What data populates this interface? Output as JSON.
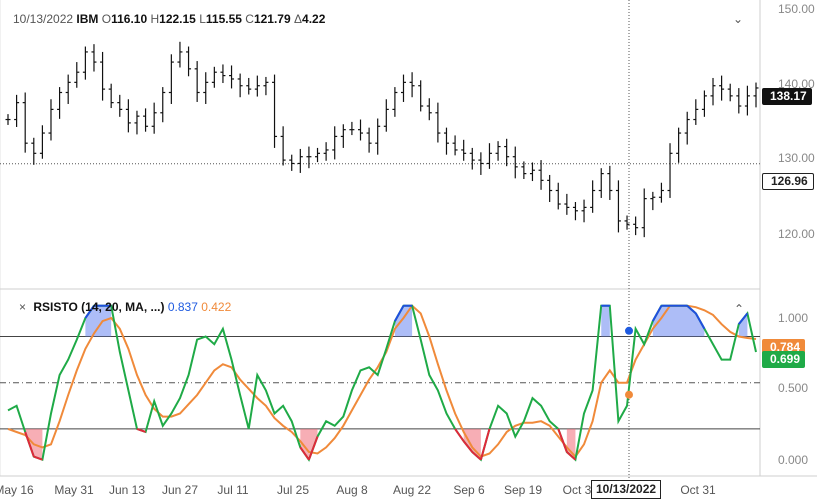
{
  "header": {
    "date": "10/13/2022",
    "symbol": "IBM",
    "o_label": "O",
    "o_value": "116.10",
    "h_label": "H",
    "h_value": "122.15",
    "l_label": "L",
    "l_value": "115.55",
    "c_label": "C",
    "c_value": "121.79",
    "d_label": "Δ",
    "d_value": "4.22"
  },
  "indicator": {
    "name": "RSISTO (14, 20, MA, ...)",
    "k_value": "0.837",
    "d_value": "0.422",
    "k_color": "#1f5be0",
    "d_color": "#f08a3a"
  },
  "badges": {
    "last_price": "138.17",
    "crosshair_price": "126.96",
    "k_last": "0.699",
    "d_last": "0.784",
    "crosshair_date": "10/13/2022"
  },
  "icons": {
    "collapse_price": "chevron-down-icon",
    "close_indicator": "close-icon",
    "collapse_indicator": "chevron-up-icon"
  },
  "glyphs": {
    "chevron_down": "⌄",
    "close": "×",
    "chevron_up": "⌃"
  },
  "colors": {
    "up_fill": "#6a86f0",
    "down_fill": "#f06b78",
    "k_line": "#1faa47",
    "d_line": "#f08a3a",
    "bars": "#111111"
  },
  "chart_data": [
    {
      "type": "ohlc",
      "ylim": [
        110.5,
        150
      ],
      "yticks": [
        120,
        130,
        140,
        150
      ],
      "ytick_labels": [
        "120.00",
        "130.00",
        "140.00",
        "150.00"
      ],
      "xtick_labels": [
        "May 16",
        "May 31",
        "Jun 13",
        "Jun 27",
        "Jul 11",
        "Jul 25",
        "Aug 8",
        "Aug 22",
        "Sep 6",
        "Sep 19",
        "Oct 3",
        "Oct 31"
      ],
      "crosshair": {
        "date": "10/13/2022",
        "price": 126.96
      },
      "last_price": 138.17,
      "closes": [
        133.5,
        136.0,
        130.0,
        128.5,
        131.5,
        135.0,
        137.5,
        139.0,
        140.5,
        143.5,
        142.0,
        138.0,
        136.0,
        135.0,
        133.0,
        134.0,
        132.5,
        134.5,
        137.5,
        142.0,
        143.5,
        141.0,
        137.5,
        139.0,
        140.5,
        140.0,
        139.5,
        138.5,
        138.0,
        138.5,
        139.0,
        131.0,
        127.5,
        127.0,
        128.0,
        128.0,
        128.5,
        129.0,
        131.0,
        132.0,
        132.0,
        131.5,
        130.0,
        132.5,
        135.0,
        137.5,
        139.0,
        138.5,
        135.5,
        134.5,
        131.5,
        130.0,
        129.0,
        128.5,
        127.5,
        127.0,
        128.5,
        129.5,
        128.0,
        126.5,
        125.5,
        126.0,
        124.5,
        123.0,
        121.0,
        120.5,
        120.0,
        120.5,
        123.0,
        125.5,
        123.0,
        118.5,
        118.0,
        117.5,
        121.8,
        122.0,
        123.0,
        128.5,
        131.5,
        133.5,
        135.0,
        137.0,
        138.5,
        138.0,
        137.0,
        135.5,
        137.0,
        138.17
      ]
    },
    {
      "type": "line",
      "title": "RSISTO (14, 20, MA, ...)",
      "ylim": [
        -0.08,
        1.05
      ],
      "yticks": [
        0,
        0.5,
        1.0
      ],
      "ytick_labels": [
        "0.000",
        "0.500",
        "1.000"
      ],
      "reference_lines": [
        0.2,
        0.5,
        0.8
      ],
      "series": [
        {
          "name": "%K",
          "color": "#1faa47",
          "values": [
            0.32,
            0.35,
            0.18,
            0.02,
            0.0,
            0.3,
            0.55,
            0.65,
            0.78,
            0.92,
            1.0,
            1.0,
            1.0,
            0.7,
            0.45,
            0.2,
            0.18,
            0.38,
            0.22,
            0.3,
            0.4,
            0.55,
            0.78,
            0.8,
            0.75,
            0.85,
            0.65,
            0.42,
            0.2,
            0.55,
            0.45,
            0.3,
            0.35,
            0.25,
            0.08,
            0.0,
            0.15,
            0.25,
            0.22,
            0.28,
            0.45,
            0.58,
            0.6,
            0.55,
            0.72,
            0.9,
            1.0,
            1.0,
            0.78,
            0.55,
            0.45,
            0.3,
            0.2,
            0.12,
            0.05,
            0.0,
            0.2,
            0.35,
            0.3,
            0.15,
            0.25,
            0.4,
            0.35,
            0.25,
            0.2,
            0.05,
            0.0,
            0.3,
            0.45,
            1.0,
            1.0,
            0.25,
            0.35,
            0.85,
            0.75,
            0.9,
            1.0,
            1.0,
            1.0,
            1.0,
            0.95,
            0.85,
            0.75,
            0.65,
            0.65,
            0.88,
            0.95,
            0.699
          ]
        },
        {
          "name": "%D",
          "color": "#f08a3a",
          "values": [
            0.2,
            0.18,
            0.16,
            0.1,
            0.08,
            0.1,
            0.25,
            0.42,
            0.58,
            0.72,
            0.82,
            0.9,
            0.92,
            0.85,
            0.72,
            0.55,
            0.42,
            0.33,
            0.28,
            0.28,
            0.3,
            0.36,
            0.42,
            0.5,
            0.58,
            0.62,
            0.6,
            0.52,
            0.46,
            0.4,
            0.35,
            0.27,
            0.22,
            0.18,
            0.12,
            0.05,
            0.04,
            0.08,
            0.14,
            0.22,
            0.32,
            0.42,
            0.52,
            0.6,
            0.7,
            0.85,
            0.92,
            1.0,
            0.95,
            0.8,
            0.62,
            0.45,
            0.3,
            0.18,
            0.08,
            0.02,
            0.04,
            0.1,
            0.18,
            0.22,
            0.24,
            0.24,
            0.25,
            0.22,
            0.15,
            0.08,
            0.02,
            0.1,
            0.25,
            0.5,
            0.58,
            0.5,
            0.5,
            0.65,
            0.75,
            0.85,
            0.92,
            1.0,
            1.0,
            1.0,
            0.99,
            0.97,
            0.94,
            0.88,
            0.83,
            0.8,
            0.79,
            0.784
          ]
        }
      ]
    }
  ]
}
